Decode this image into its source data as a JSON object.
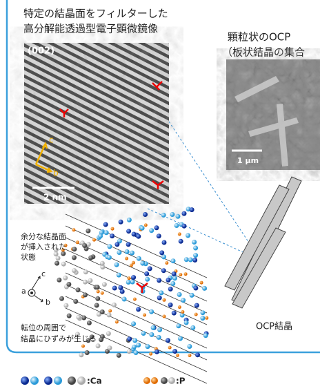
{
  "tem_image": {
    "title_lines": [
      "特定の結晶面をフィルターした",
      "高分解能透過型電子顕微鏡像"
    ],
    "plane": "(002)",
    "axis_c": "c",
    "axis_b": "b",
    "scale": "2 nm"
  },
  "sem_image": {
    "title": "顆粒状のOCP",
    "subtitle": "（板状結晶の集合",
    "scale": "1 μm"
  },
  "model": {
    "note_lines": [
      "余分な結晶面",
      "が挿入された",
      "状態"
    ],
    "axis_a": "a",
    "axis_c": "c",
    "axis_b": "b",
    "strain_lines": [
      "転位の周囲で",
      "結晶にひずみが生じる"
    ]
  },
  "crystal_label": "OCP結晶",
  "legend": {
    "ca": ":Ca",
    "p": ":P"
  }
}
